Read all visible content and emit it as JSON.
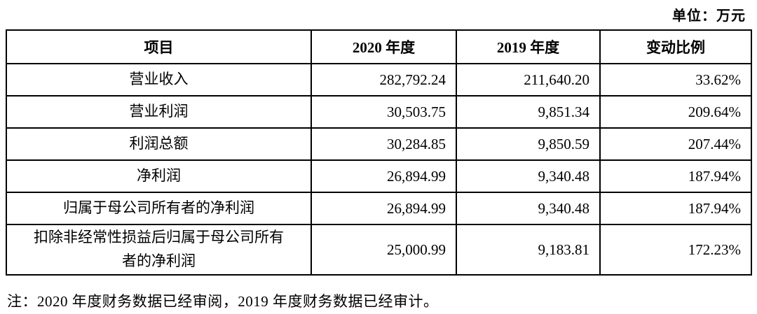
{
  "unit_label": "单位：万元",
  "table": {
    "headers": {
      "item": "项目",
      "y2020": "2020 年度",
      "y2019": "2019 年度",
      "change": "变动比例"
    },
    "rows": [
      {
        "item": "营业收入",
        "y2020": "282,792.24",
        "y2019": "211,640.20",
        "change": "33.62%"
      },
      {
        "item": "营业利润",
        "y2020": "30,503.75",
        "y2019": "9,851.34",
        "change": "209.64%"
      },
      {
        "item": "利润总额",
        "y2020": "30,284.85",
        "y2019": "9,850.59",
        "change": "207.44%"
      },
      {
        "item": "净利润",
        "y2020": "26,894.99",
        "y2019": "9,340.48",
        "change": "187.94%"
      },
      {
        "item": "归属于母公司所有者的净利润",
        "y2020": "26,894.99",
        "y2019": "9,340.48",
        "change": "187.94%"
      },
      {
        "item": "扣除非经常性损益后归属于母公司所有者的净利润",
        "y2020": "25,000.99",
        "y2019": "9,183.81",
        "change": "172.23%"
      }
    ]
  },
  "note": "注：2020 年度财务数据已经审阅，2019 年度财务数据已经审计。",
  "chart_data": {
    "type": "table",
    "title": "",
    "unit": "万元",
    "columns": [
      "项目",
      "2020 年度",
      "2019 年度",
      "变动比例"
    ],
    "rows": [
      [
        "营业收入",
        282792.24,
        211640.2,
        "33.62%"
      ],
      [
        "营业利润",
        30503.75,
        9851.34,
        "209.64%"
      ],
      [
        "利润总额",
        30284.85,
        9850.59,
        "207.44%"
      ],
      [
        "净利润",
        26894.99,
        9340.48,
        "187.94%"
      ],
      [
        "归属于母公司所有者的净利润",
        26894.99,
        9340.48,
        "187.94%"
      ],
      [
        "扣除非经常性损益后归属于母公司所有者的净利润",
        25000.99,
        9183.81,
        "172.23%"
      ]
    ]
  }
}
